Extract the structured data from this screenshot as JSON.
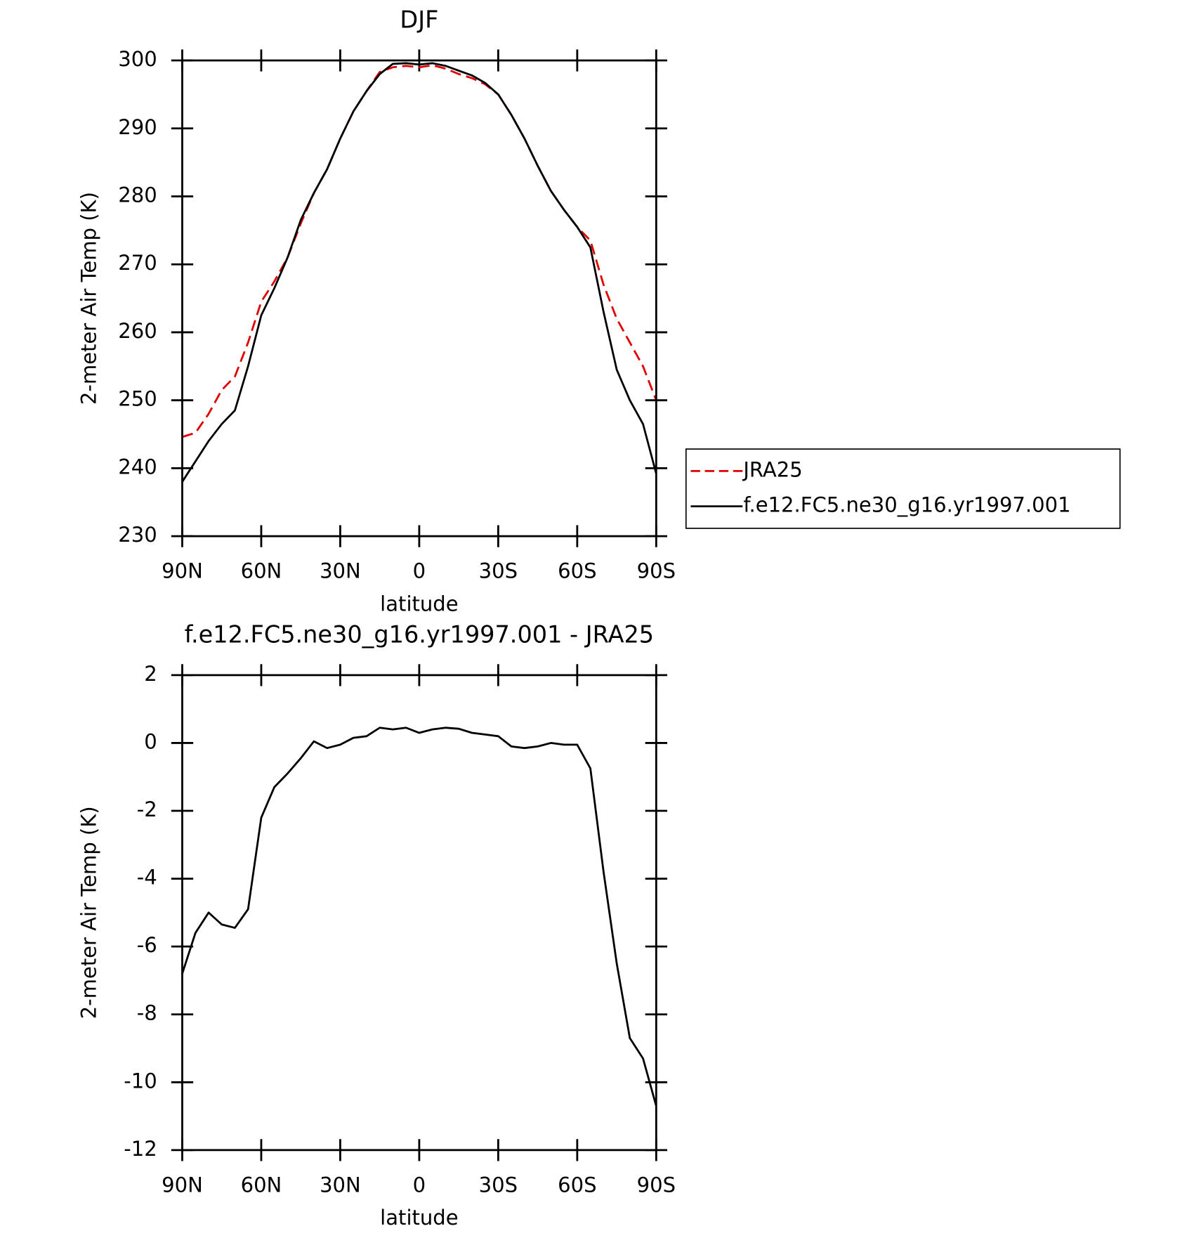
{
  "chart_data": [
    {
      "type": "line",
      "title": "DJF",
      "xlabel": "latitude",
      "ylabel": "2-meter Air Temp (K)",
      "x": [
        90,
        85,
        80,
        75,
        70,
        65,
        60,
        55,
        50,
        45,
        40,
        35,
        30,
        25,
        20,
        15,
        10,
        5,
        0,
        -5,
        -10,
        -15,
        -20,
        -25,
        -30,
        -35,
        -40,
        -45,
        -50,
        -55,
        -60,
        -65,
        -70,
        -75,
        -80,
        -85,
        -90
      ],
      "xlim": [
        90,
        -90
      ],
      "xticks": [
        {
          "value": 90,
          "label": "90N"
        },
        {
          "value": 60,
          "label": "60N"
        },
        {
          "value": 30,
          "label": "30N"
        },
        0,
        {
          "value": -30,
          "label": "30S"
        },
        {
          "value": -60,
          "label": "60S"
        },
        {
          "value": -90,
          "label": "90S"
        }
      ],
      "ylim": [
        230,
        300
      ],
      "yticks": [
        230,
        240,
        250,
        260,
        270,
        280,
        290,
        300
      ],
      "legend": "right",
      "series": [
        {
          "name": "JRA25",
          "color": "#e00000",
          "dash": true,
          "values": [
            244.6,
            245.2,
            248,
            251.5,
            253.5,
            258.5,
            264.5,
            267.5,
            271,
            276,
            280.5,
            284,
            288.5,
            292.5,
            295.5,
            298.3,
            299,
            299.2,
            299,
            299.3,
            298.8,
            298,
            297.4,
            296.5,
            295,
            292,
            288.5,
            284.5,
            280.8,
            278,
            275.5,
            273.5,
            267,
            262,
            258.5,
            255,
            250
          ]
        },
        {
          "name": "f.e12.FC5.ne30_g16.yr1997.001",
          "color": "#000000",
          "dash": false,
          "values": [
            238,
            241,
            244,
            246.5,
            248.5,
            255,
            262.5,
            266.5,
            271,
            276.5,
            280.5,
            284,
            288.5,
            292.5,
            295.5,
            298,
            299.5,
            299.6,
            299.4,
            299.6,
            299.2,
            298.5,
            297.8,
            296.7,
            295,
            292,
            288.5,
            284.5,
            280.8,
            278,
            275.5,
            272.5,
            263,
            254.5,
            250,
            246.5,
            239.2
          ]
        }
      ]
    },
    {
      "type": "line",
      "title": "f.e12.FC5.ne30_g16.yr1997.001 - JRA25",
      "xlabel": "latitude",
      "ylabel": "2-meter Air Temp (K)",
      "x": [
        90,
        85,
        80,
        75,
        70,
        65,
        60,
        55,
        50,
        45,
        40,
        35,
        30,
        25,
        20,
        15,
        10,
        5,
        0,
        -5,
        -10,
        -15,
        -20,
        -25,
        -30,
        -35,
        -40,
        -45,
        -50,
        -55,
        -60,
        -65,
        -70,
        -75,
        -80,
        -85,
        -90
      ],
      "xlim": [
        90,
        -90
      ],
      "xticks": [
        {
          "value": 90,
          "label": "90N"
        },
        {
          "value": 60,
          "label": "60N"
        },
        {
          "value": 30,
          "label": "30N"
        },
        0,
        {
          "value": -30,
          "label": "30S"
        },
        {
          "value": -60,
          "label": "60S"
        },
        {
          "value": -90,
          "label": "90S"
        }
      ],
      "ylim": [
        -12,
        2
      ],
      "yticks": [
        -12,
        -10,
        -8,
        -6,
        -4,
        -2,
        0,
        2
      ],
      "color": "#000000",
      "values": [
        -6.8,
        -5.6,
        -5.0,
        -5.35,
        -5.45,
        -4.9,
        -2.2,
        -1.3,
        -0.9,
        -0.45,
        0.05,
        -0.15,
        -0.05,
        0.15,
        0.2,
        0.45,
        0.4,
        0.45,
        0.3,
        0.4,
        0.45,
        0.42,
        0.3,
        0.25,
        0.2,
        -0.1,
        -0.15,
        -0.1,
        0.0,
        -0.05,
        -0.05,
        -0.75,
        -3.8,
        -6.5,
        -8.7,
        -9.3,
        -10.7
      ]
    }
  ]
}
